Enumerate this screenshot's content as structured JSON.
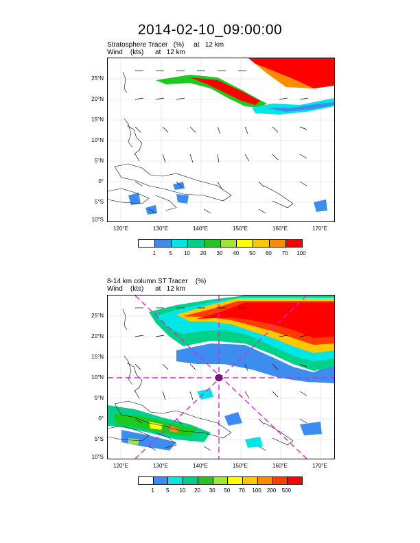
{
  "title": "2014-02-10_09:00:00",
  "panels": [
    {
      "title_line1": "Stratosphere Tracer   (%)     at   12 km",
      "title_line2": "Wind    (kts)      at   12 km",
      "lat_labels": [
        "25°N",
        "20°N",
        "15°N",
        "10°N",
        "5°N",
        "0°",
        "5°S",
        "10°S"
      ],
      "lon_labels": [
        "120°E",
        "130°E",
        "140°E",
        "150°E",
        "160°E",
        "170°E"
      ],
      "colorbar": {
        "colors": [
          "#ffffff",
          "#3d8cf0",
          "#00e5e5",
          "#00d08a",
          "#1ec81e",
          "#a0e632",
          "#ffff00",
          "#ffc800",
          "#ff8c00",
          "#ff0000"
        ],
        "labels": [
          "1",
          "5",
          "10",
          "20",
          "30",
          "40",
          "50",
          "60",
          "70",
          "100"
        ]
      }
    },
    {
      "title_line1": "8-14 km column ST Tracer    (%)",
      "title_line2": "Wind    (kts)      at   12 km",
      "lat_labels": [
        "25°N",
        "20°N",
        "15°N",
        "10°N",
        "5°N",
        "0°",
        "5°S",
        "10°S"
      ],
      "lon_labels": [
        "120°E",
        "130°E",
        "140°E",
        "150°E",
        "160°E",
        "170°E"
      ],
      "colorbar": {
        "colors": [
          "#ffffff",
          "#3d8cf0",
          "#00e5e5",
          "#00d08a",
          "#1ec81e",
          "#a0e632",
          "#ffff00",
          "#ffc800",
          "#ff8c00",
          "#ff3c00",
          "#ff0000"
        ],
        "labels": [
          "1",
          "5",
          "10",
          "20",
          "30",
          "50",
          "70",
          "100",
          "200",
          "500"
        ]
      }
    }
  ]
}
